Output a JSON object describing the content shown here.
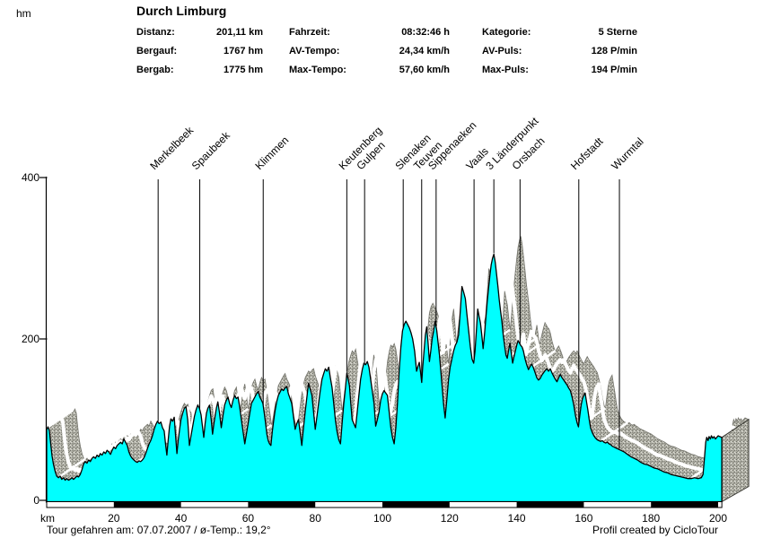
{
  "page": {
    "y_axis_unit": "hm",
    "title": "Durch Limburg"
  },
  "stats": {
    "col1": [
      {
        "label": "Distanz:",
        "value": "201,11 km"
      },
      {
        "label": "Bergauf:",
        "value": "1767 hm"
      },
      {
        "label": "Bergab:",
        "value": "1775 hm"
      }
    ],
    "col2": [
      {
        "label": "Fahrzeit:",
        "value": "08:32:46 h"
      },
      {
        "label": "AV-Tempo:",
        "value": "24,34 km/h"
      },
      {
        "label": "Max-Tempo:",
        "value": "57,60 km/h"
      }
    ],
    "col3": [
      {
        "label": "Kategorie:",
        "value": "5 Sterne"
      },
      {
        "label": "AV-Puls:",
        "value": "128 P/min"
      },
      {
        "label": "Max-Puls:",
        "value": "194 P/min"
      }
    ]
  },
  "footer": {
    "left": "Tour gefahren am: 07.07.2007  /  ø-Temp.: 19,2°",
    "right": "Profil created by CicloTour"
  },
  "chart_data": {
    "type": "area",
    "title": "Durch Limburg",
    "xlabel": "km",
    "ylabel": "hm",
    "xlim": [
      0,
      201.11
    ],
    "ylim": [
      0,
      400
    ],
    "x_ticks": [
      20,
      40,
      60,
      80,
      100,
      120,
      140,
      160,
      180,
      200
    ],
    "x_unit_label": "km",
    "y_ticks": [
      0,
      200,
      400
    ],
    "grid": false,
    "legend": false,
    "colors": {
      "area": "#00ffff",
      "outline": "#000000",
      "band_base": "#b2b2a8",
      "band_dark": "#6e6e66",
      "band_mid": "#8a8a80",
      "band_light": "#dcdcd4",
      "stripe": "#ffffff",
      "axis": "#000000"
    },
    "markers": [
      {
        "label": "Merkelbeek",
        "km": 33.2
      },
      {
        "label": "Spaubeek",
        "km": 45.6
      },
      {
        "label": "Klimmen",
        "km": 64.5
      },
      {
        "label": "Keutenberg",
        "km": 89.4
      },
      {
        "label": "Gulpen",
        "km": 94.7
      },
      {
        "label": "Slenaken",
        "km": 106.2
      },
      {
        "label": "Teuven",
        "km": 111.7
      },
      {
        "label": "Sippenaeken",
        "km": 116.0
      },
      {
        "label": "Vaals",
        "km": 127.3
      },
      {
        "label": "3 Länderpunkt",
        "km": 133.2
      },
      {
        "label": "Orsbach",
        "km": 141.0
      },
      {
        "label": "Hofstadt",
        "km": 158.5
      },
      {
        "label": "Wurmtal",
        "km": 170.6
      }
    ],
    "profile_km_hm": [
      [
        0,
        88
      ],
      [
        0.4,
        91
      ],
      [
        0.8,
        86
      ],
      [
        1.2,
        70
      ],
      [
        1.6,
        55
      ],
      [
        2,
        45
      ],
      [
        2.5,
        36
      ],
      [
        3,
        30
      ],
      [
        3.5,
        28
      ],
      [
        4,
        30
      ],
      [
        4.5,
        26
      ],
      [
        5,
        28
      ],
      [
        5.5,
        25
      ],
      [
        6,
        27
      ],
      [
        6.5,
        25
      ],
      [
        7,
        26
      ],
      [
        7.5,
        28
      ],
      [
        8,
        26
      ],
      [
        8.5,
        28
      ],
      [
        9,
        30
      ],
      [
        9.5,
        29
      ],
      [
        10,
        32
      ],
      [
        10.5,
        38
      ],
      [
        11,
        45
      ],
      [
        11.5,
        48
      ],
      [
        12,
        46
      ],
      [
        12.5,
        50
      ],
      [
        13,
        48
      ],
      [
        13.5,
        52
      ],
      [
        14,
        54
      ],
      [
        14.5,
        52
      ],
      [
        15,
        56
      ],
      [
        15.5,
        54
      ],
      [
        16,
        58
      ],
      [
        16.5,
        56
      ],
      [
        17,
        60
      ],
      [
        17.5,
        58
      ],
      [
        18,
        62
      ],
      [
        18.5,
        60
      ],
      [
        19,
        57
      ],
      [
        19.5,
        62
      ],
      [
        20,
        66
      ],
      [
        20.5,
        64
      ],
      [
        21,
        68
      ],
      [
        21.5,
        70
      ],
      [
        22,
        72
      ],
      [
        22.5,
        70
      ],
      [
        23,
        76
      ],
      [
        23.5,
        72
      ],
      [
        24,
        68
      ],
      [
        24.5,
        60
      ],
      [
        25,
        55
      ],
      [
        25.5,
        52
      ],
      [
        26,
        50
      ],
      [
        26.5,
        48
      ],
      [
        27,
        47
      ],
      [
        27.5,
        49
      ],
      [
        28,
        48
      ],
      [
        28.5,
        50
      ],
      [
        29,
        53
      ],
      [
        29.5,
        58
      ],
      [
        30,
        64
      ],
      [
        30.5,
        70
      ],
      [
        31,
        74
      ],
      [
        31.5,
        80
      ],
      [
        32,
        88
      ],
      [
        32.5,
        94
      ],
      [
        33,
        98
      ],
      [
        33.5,
        95
      ],
      [
        34,
        97
      ],
      [
        34.5,
        90
      ],
      [
        35,
        86
      ],
      [
        35.4,
        70
      ],
      [
        35.8,
        56
      ],
      [
        36.2,
        75
      ],
      [
        36.6,
        92
      ],
      [
        37,
        101
      ],
      [
        37.5,
        98
      ],
      [
        38,
        103
      ],
      [
        38.4,
        80
      ],
      [
        38.8,
        58
      ],
      [
        39.2,
        75
      ],
      [
        39.6,
        88
      ],
      [
        40,
        100
      ],
      [
        40.5,
        108
      ],
      [
        41,
        114
      ],
      [
        41.5,
        116
      ],
      [
        42,
        100
      ],
      [
        42.5,
        68
      ],
      [
        43,
        80
      ],
      [
        43.5,
        92
      ],
      [
        44,
        104
      ],
      [
        44.5,
        112
      ],
      [
        45,
        118
      ],
      [
        45.5,
        114
      ],
      [
        46,
        106
      ],
      [
        46.4,
        92
      ],
      [
        46.8,
        78
      ],
      [
        47.2,
        95
      ],
      [
        47.6,
        108
      ],
      [
        48,
        114
      ],
      [
        48.5,
        118
      ],
      [
        49,
        100
      ],
      [
        49.4,
        82
      ],
      [
        49.8,
        95
      ],
      [
        50.2,
        105
      ],
      [
        50.6,
        115
      ],
      [
        51,
        122
      ],
      [
        51.5,
        108
      ],
      [
        52,
        90
      ],
      [
        52.5,
        105
      ],
      [
        53,
        118
      ],
      [
        53.5,
        124
      ],
      [
        54,
        128
      ],
      [
        54.5,
        120
      ],
      [
        55,
        115
      ],
      [
        55.5,
        124
      ],
      [
        56,
        130
      ],
      [
        56.5,
        126
      ],
      [
        57,
        128
      ],
      [
        57.5,
        115
      ],
      [
        58,
        100
      ],
      [
        58.5,
        85
      ],
      [
        59,
        70
      ],
      [
        59.5,
        82
      ],
      [
        60,
        95
      ],
      [
        60.5,
        108
      ],
      [
        61,
        120
      ],
      [
        61.5,
        124
      ],
      [
        62,
        128
      ],
      [
        62.5,
        132
      ],
      [
        63,
        135
      ],
      [
        63.5,
        128
      ],
      [
        64,
        124
      ],
      [
        64.4,
        120
      ],
      [
        64.8,
        108
      ],
      [
        65.2,
        96
      ],
      [
        65.6,
        82
      ],
      [
        66,
        74
      ],
      [
        66.4,
        70
      ],
      [
        66.8,
        68
      ],
      [
        67.2,
        85
      ],
      [
        67.6,
        98
      ],
      [
        68,
        110
      ],
      [
        68.5,
        122
      ],
      [
        69,
        130
      ],
      [
        69.5,
        134
      ],
      [
        70,
        138
      ],
      [
        70.5,
        136
      ],
      [
        71,
        139
      ],
      [
        71.5,
        141
      ],
      [
        72,
        132
      ],
      [
        72.5,
        126
      ],
      [
        73,
        120
      ],
      [
        73.5,
        104
      ],
      [
        74,
        88
      ],
      [
        74.5,
        95
      ],
      [
        75,
        100
      ],
      [
        75.5,
        84
      ],
      [
        76,
        68
      ],
      [
        76.5,
        90
      ],
      [
        77,
        110
      ],
      [
        77.5,
        128
      ],
      [
        78,
        145
      ],
      [
        78.5,
        138
      ],
      [
        79,
        130
      ],
      [
        79.5,
        110
      ],
      [
        80,
        88
      ],
      [
        80.5,
        104
      ],
      [
        81,
        120
      ],
      [
        81.5,
        136
      ],
      [
        82,
        150
      ],
      [
        82.5,
        157
      ],
      [
        83,
        163
      ],
      [
        83.5,
        160
      ],
      [
        84,
        165
      ],
      [
        84.5,
        152
      ],
      [
        85,
        140
      ],
      [
        85.5,
        120
      ],
      [
        86,
        100
      ],
      [
        86.5,
        85
      ],
      [
        87,
        75
      ],
      [
        87.5,
        70
      ],
      [
        88,
        95
      ],
      [
        88.5,
        120
      ],
      [
        89,
        140
      ],
      [
        89.4,
        158
      ],
      [
        89.8,
        150
      ],
      [
        90.2,
        142
      ],
      [
        90.6,
        120
      ],
      [
        91,
        100
      ],
      [
        91.5,
        95
      ],
      [
        92,
        90
      ],
      [
        92.5,
        110
      ],
      [
        93,
        130
      ],
      [
        93.5,
        150
      ],
      [
        94,
        162
      ],
      [
        94.5,
        170
      ],
      [
        95,
        168
      ],
      [
        95.5,
        172
      ],
      [
        96,
        165
      ],
      [
        96.5,
        150
      ],
      [
        97,
        135
      ],
      [
        97.5,
        120
      ],
      [
        98,
        92
      ],
      [
        98.5,
        100
      ],
      [
        99,
        110
      ],
      [
        99.5,
        124
      ],
      [
        100,
        132
      ],
      [
        100.5,
        136
      ],
      [
        101,
        133
      ],
      [
        101.5,
        130
      ],
      [
        102,
        110
      ],
      [
        102.5,
        90
      ],
      [
        103,
        78
      ],
      [
        103.5,
        70
      ],
      [
        104,
        90
      ],
      [
        104.5,
        120
      ],
      [
        105,
        160
      ],
      [
        105.5,
        190
      ],
      [
        106,
        210
      ],
      [
        106.5,
        218
      ],
      [
        107,
        222
      ],
      [
        107.5,
        218
      ],
      [
        108,
        214
      ],
      [
        108.5,
        208
      ],
      [
        109,
        200
      ],
      [
        109.6,
        185
      ],
      [
        110.2,
        160
      ],
      [
        110.6,
        166
      ],
      [
        111,
        171
      ],
      [
        111.4,
        158
      ],
      [
        111.7,
        146
      ],
      [
        112,
        165
      ],
      [
        112.4,
        185
      ],
      [
        112.8,
        205
      ],
      [
        113.2,
        215
      ],
      [
        113.6,
        195
      ],
      [
        114,
        172
      ],
      [
        114.4,
        185
      ],
      [
        114.8,
        200
      ],
      [
        115.2,
        208
      ],
      [
        115.7,
        222
      ],
      [
        116.2,
        210
      ],
      [
        116.6,
        195
      ],
      [
        117,
        180
      ],
      [
        117.4,
        160
      ],
      [
        117.8,
        140
      ],
      [
        118.2,
        120
      ],
      [
        118.7,
        102
      ],
      [
        119.2,
        125
      ],
      [
        119.7,
        150
      ],
      [
        120.2,
        165
      ],
      [
        120.7,
        175
      ],
      [
        121.2,
        185
      ],
      [
        121.7,
        192
      ],
      [
        122.2,
        196
      ],
      [
        122.7,
        205
      ],
      [
        123.2,
        235
      ],
      [
        123.7,
        265
      ],
      [
        124.2,
        258
      ],
      [
        124.7,
        250
      ],
      [
        125.2,
        230
      ],
      [
        125.7,
        210
      ],
      [
        126.2,
        190
      ],
      [
        126.7,
        175
      ],
      [
        127.2,
        170
      ],
      [
        127.6,
        185
      ],
      [
        128,
        210
      ],
      [
        128.4,
        237
      ],
      [
        128.8,
        228
      ],
      [
        129.2,
        220
      ],
      [
        129.6,
        205
      ],
      [
        130,
        188
      ],
      [
        130.4,
        205
      ],
      [
        130.8,
        225
      ],
      [
        131.2,
        245
      ],
      [
        131.6,
        262
      ],
      [
        132,
        278
      ],
      [
        132.4,
        292
      ],
      [
        132.8,
        300
      ],
      [
        133.2,
        305
      ],
      [
        133.6,
        295
      ],
      [
        134,
        280
      ],
      [
        134.4,
        265
      ],
      [
        134.8,
        248
      ],
      [
        135.2,
        235
      ],
      [
        135.6,
        222
      ],
      [
        136,
        205
      ],
      [
        136.4,
        192
      ],
      [
        136.8,
        180
      ],
      [
        137.2,
        176
      ],
      [
        137.6,
        186
      ],
      [
        138,
        195
      ],
      [
        138.4,
        182
      ],
      [
        138.8,
        170
      ],
      [
        139.2,
        178
      ],
      [
        139.6,
        185
      ],
      [
        140,
        192
      ],
      [
        140.4,
        198
      ],
      [
        140.8,
        195
      ],
      [
        141.2,
        192
      ],
      [
        141.6,
        190
      ],
      [
        142,
        185
      ],
      [
        142.5,
        175
      ],
      [
        143,
        168
      ],
      [
        143.5,
        162
      ],
      [
        144,
        166
      ],
      [
        144.5,
        169
      ],
      [
        145,
        164
      ],
      [
        145.5,
        158
      ],
      [
        146,
        152
      ],
      [
        146.5,
        149
      ],
      [
        147,
        151
      ],
      [
        147.5,
        155
      ],
      [
        148,
        158
      ],
      [
        148.5,
        161
      ],
      [
        149,
        163
      ],
      [
        149.5,
        160
      ],
      [
        150,
        163
      ],
      [
        150.5,
        158
      ],
      [
        151,
        154
      ],
      [
        151.5,
        150
      ],
      [
        152,
        147
      ],
      [
        152.5,
        152
      ],
      [
        153,
        156
      ],
      [
        153.5,
        152
      ],
      [
        154,
        149
      ],
      [
        154.5,
        146
      ],
      [
        155,
        143
      ],
      [
        155.5,
        139
      ],
      [
        156,
        136
      ],
      [
        156.5,
        128
      ],
      [
        157,
        118
      ],
      [
        157.5,
        105
      ],
      [
        158,
        96
      ],
      [
        158.4,
        91
      ],
      [
        158.8,
        105
      ],
      [
        159.2,
        118
      ],
      [
        159.6,
        126
      ],
      [
        160,
        130
      ],
      [
        160.4,
        133
      ],
      [
        160.8,
        122
      ],
      [
        161.2,
        112
      ],
      [
        161.6,
        100
      ],
      [
        162,
        90
      ],
      [
        162.5,
        84
      ],
      [
        163,
        80
      ],
      [
        163.5,
        77
      ],
      [
        164,
        75
      ],
      [
        164.5,
        74
      ],
      [
        165,
        73
      ],
      [
        165.5,
        74
      ],
      [
        166,
        72
      ],
      [
        166.5,
        71
      ],
      [
        167,
        72
      ],
      [
        167.5,
        70
      ],
      [
        168,
        69
      ],
      [
        168.5,
        67
      ],
      [
        169,
        66
      ],
      [
        169.5,
        65
      ],
      [
        170,
        64
      ],
      [
        170.5,
        63
      ],
      [
        171,
        62
      ],
      [
        171.5,
        61
      ],
      [
        172,
        60
      ],
      [
        173,
        57
      ],
      [
        174,
        54
      ],
      [
        175,
        52
      ],
      [
        176,
        50
      ],
      [
        177,
        47
      ],
      [
        178,
        45
      ],
      [
        179,
        44
      ],
      [
        180,
        42
      ],
      [
        181,
        40
      ],
      [
        182,
        39
      ],
      [
        183,
        37
      ],
      [
        184,
        35
      ],
      [
        185,
        34
      ],
      [
        186,
        32
      ],
      [
        187,
        31
      ],
      [
        188,
        30
      ],
      [
        189,
        29
      ],
      [
        190,
        28
      ],
      [
        191,
        27
      ],
      [
        192,
        27
      ],
      [
        193,
        28
      ],
      [
        194,
        27
      ],
      [
        195,
        28
      ],
      [
        195.5,
        32
      ],
      [
        196,
        55
      ],
      [
        196.3,
        72
      ],
      [
        196.6,
        78
      ],
      [
        197,
        74
      ],
      [
        197.3,
        79
      ],
      [
        197.7,
        76
      ],
      [
        198,
        80
      ],
      [
        198.4,
        77
      ],
      [
        198.8,
        79
      ],
      [
        199.2,
        76
      ],
      [
        199.6,
        78
      ],
      [
        200,
        80
      ],
      [
        200.5,
        79
      ],
      [
        201.1,
        78
      ]
    ]
  }
}
